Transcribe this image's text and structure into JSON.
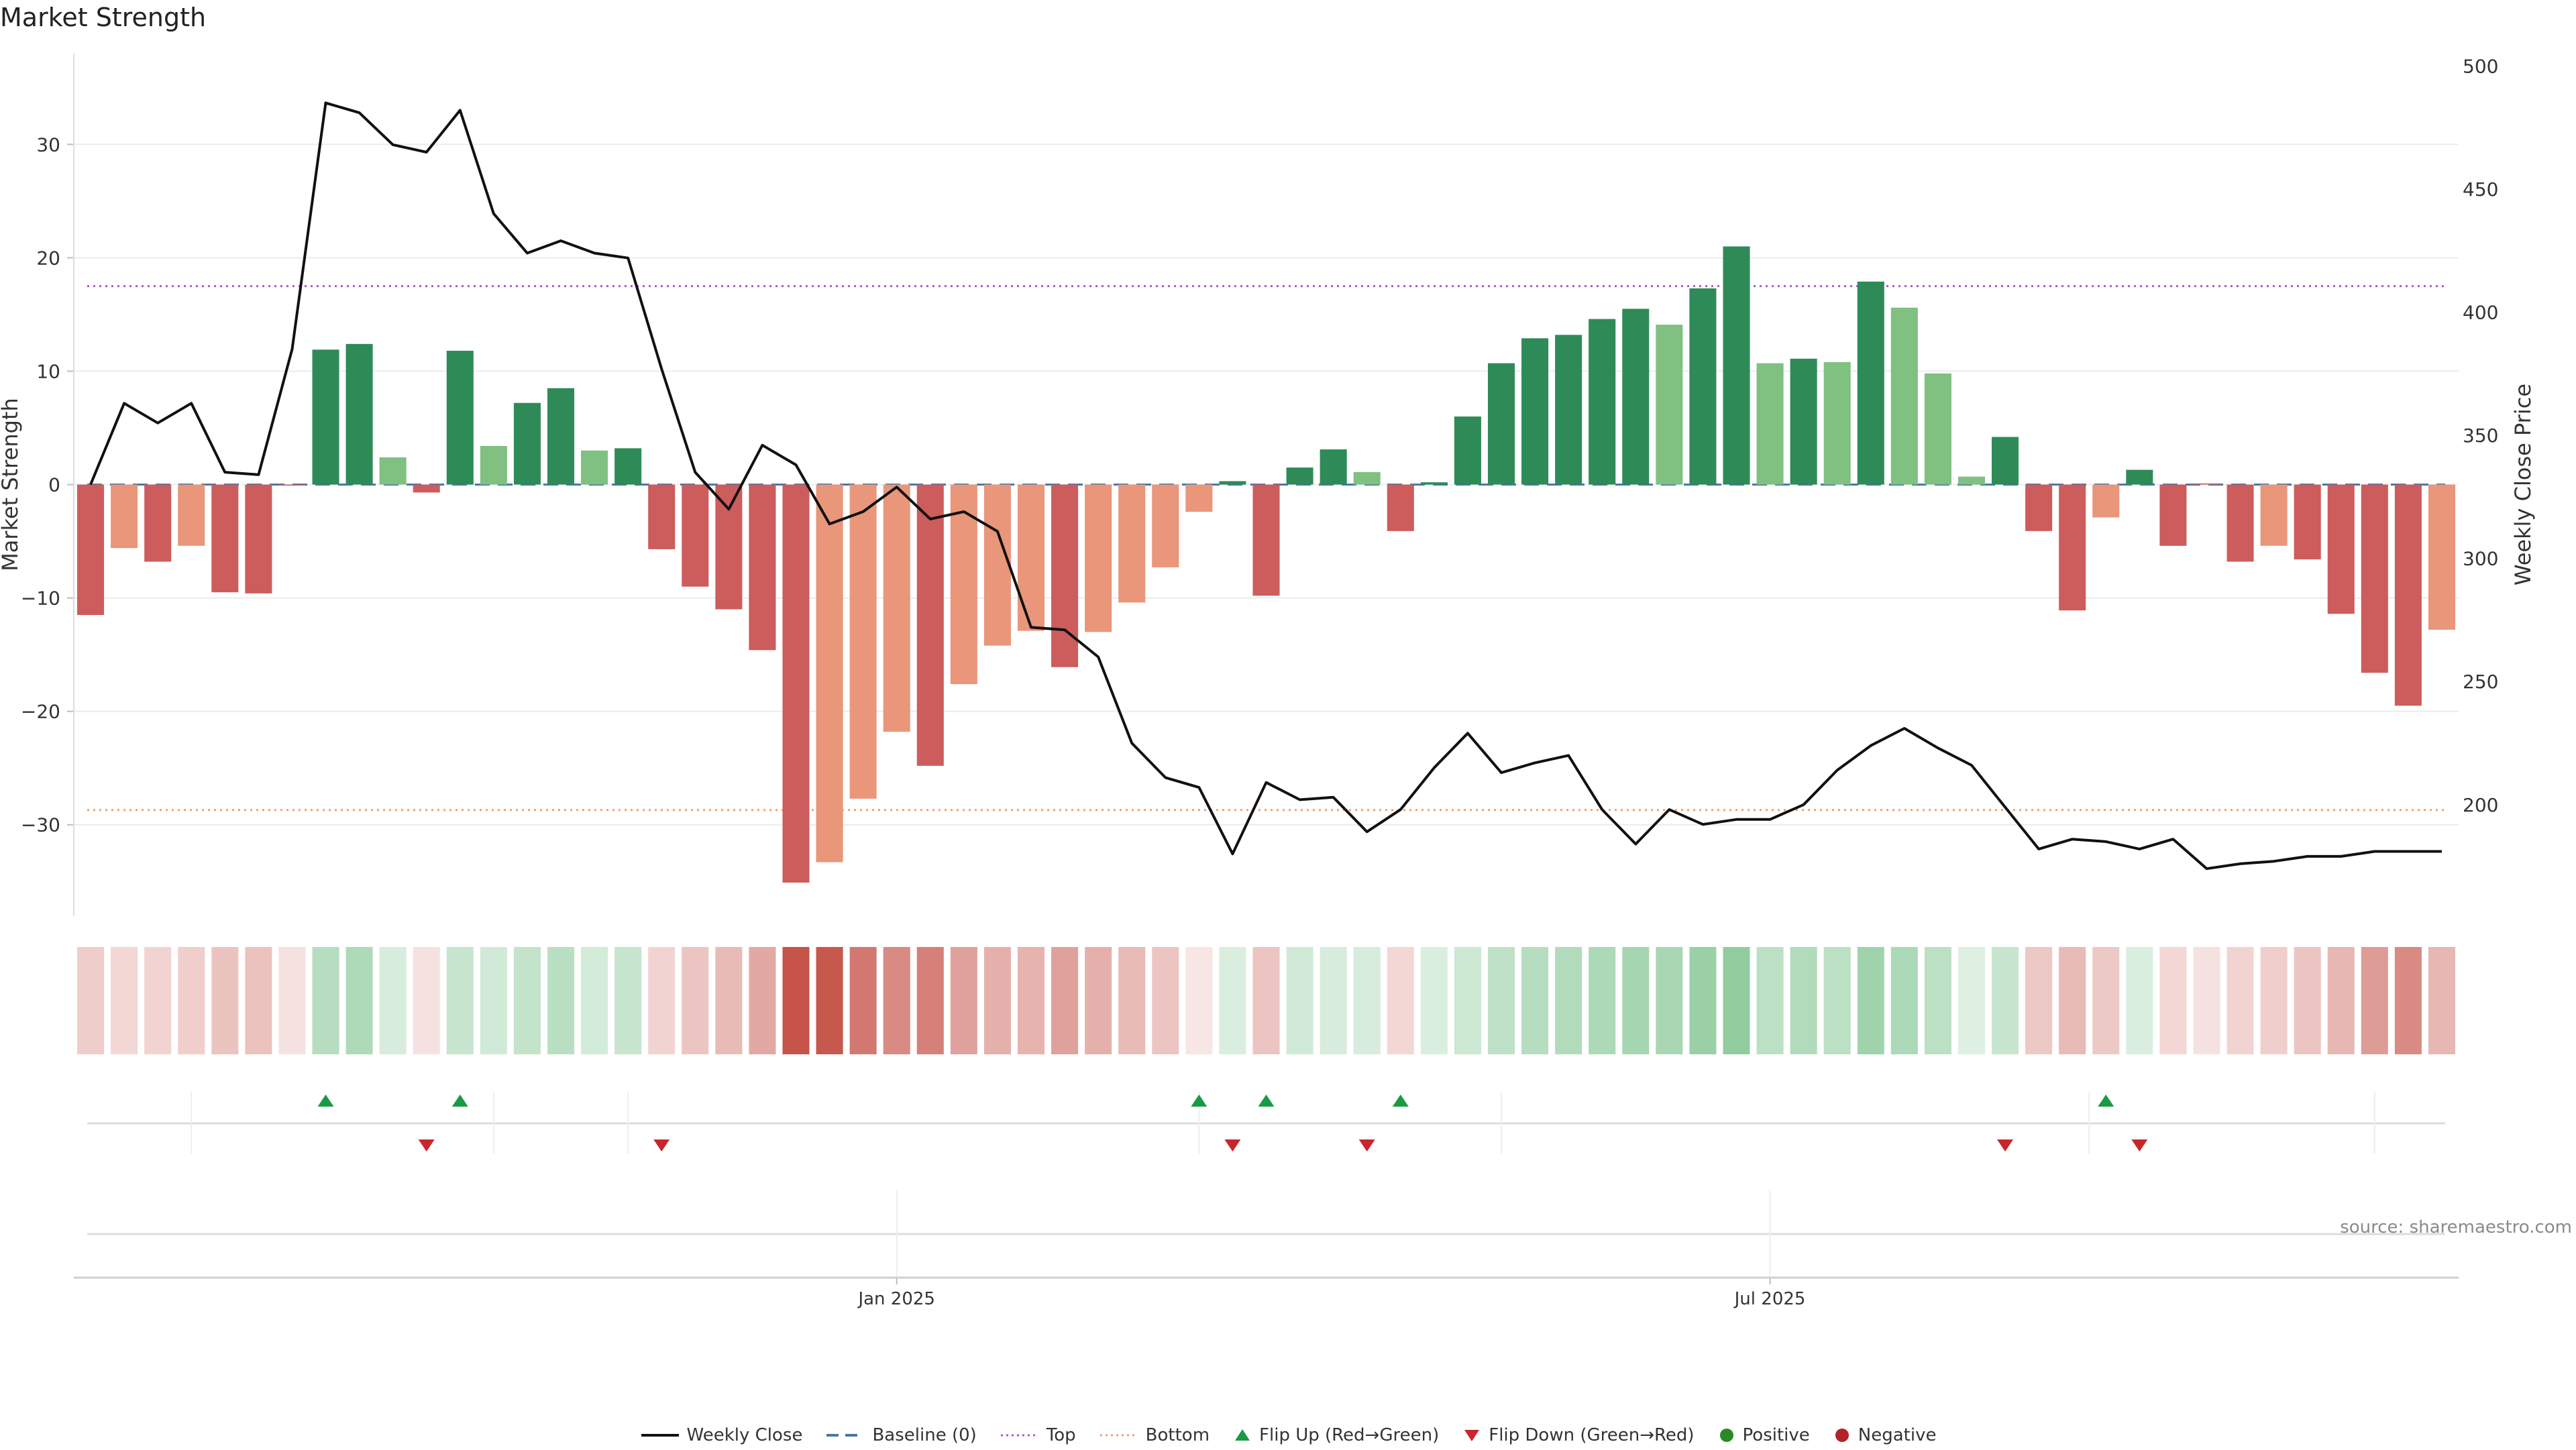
{
  "title": "Market Strength",
  "source": "source: sharemaestro.com",
  "colors": {
    "strong_pos": "#2e8b57",
    "weak_pos": "#80c080",
    "strong_neg": "#cd5c5c",
    "weak_neg": "#e9967a",
    "line": "#111111",
    "baseline": "#4a78a8",
    "top": "#a35bd0",
    "bottom": "#f0a070",
    "flip_up": "#1a9a45",
    "flip_down": "#c8262a",
    "positive": "#2a8a2a",
    "negative": "#b2222a"
  },
  "legend": [
    {
      "key": "line",
      "label": "Weekly Close",
      "symbol": "solid-line"
    },
    {
      "key": "baseline",
      "label": "Baseline (0)",
      "symbol": "dashed-line"
    },
    {
      "key": "top",
      "label": "Top",
      "symbol": "dotted-line"
    },
    {
      "key": "bottom",
      "label": "Bottom",
      "symbol": "dotted-line"
    },
    {
      "key": "flip_up",
      "label": "Flip Up (Red→Green)",
      "symbol": "triangle-up"
    },
    {
      "key": "flip_down",
      "label": "Flip Down (Green→Red)",
      "symbol": "triangle-down"
    },
    {
      "key": "positive",
      "label": "Positive",
      "symbol": "dot"
    },
    {
      "key": "negative",
      "label": "Negative",
      "symbol": "dot"
    }
  ],
  "chart_data": {
    "type": "bar",
    "ylabel": "Market Strength",
    "y2label": "Weekly Close Price",
    "ylim": [
      -38,
      38
    ],
    "y2lim": [
      155,
      505
    ],
    "yticks": [
      -30,
      -20,
      -10,
      0,
      10,
      20,
      30
    ],
    "yticks_labels": [
      "−30",
      "−20",
      "−10",
      "0",
      "10",
      "20",
      "30"
    ],
    "y2ticks": [
      200,
      250,
      300,
      350,
      400,
      450,
      500
    ],
    "y2ticks_labels": [
      "200",
      "250",
      "300",
      "350",
      "400",
      "450",
      "500"
    ],
    "x_tick_labels": [
      {
        "index": 24.5,
        "label": "Jan 2025"
      },
      {
        "index": 50.5,
        "label": "Jul 2025"
      }
    ],
    "top_level": 17.5,
    "bottom_level": -28.7,
    "baseline": 0,
    "strength": [
      -11.5,
      -5.6,
      -6.8,
      -5.4,
      -9.5,
      -9.6,
      0,
      11.9,
      12.4,
      2.4,
      -0.7,
      11.8,
      3.4,
      7.2,
      8.5,
      3.0,
      3.2,
      -5.7,
      -9.0,
      -11.0,
      -14.6,
      -35.1,
      -33.3,
      -27.7,
      -21.8,
      -24.8,
      -17.6,
      -14.2,
      -12.9,
      -16.1,
      -13.0,
      -10.4,
      -7.3,
      -2.4,
      0.3,
      -9.8,
      1.5,
      3.1,
      1.1,
      -4.1,
      0.2,
      6.0,
      10.7,
      12.9,
      13.2,
      14.6,
      15.5,
      14.1,
      17.3,
      21.0,
      10.7,
      11.1,
      10.8,
      17.9,
      15.6,
      9.8,
      0.7,
      4.2,
      -4.1,
      -11.1,
      -2.9,
      1.3,
      -5.4,
      0.1,
      -6.8,
      -5.4,
      -6.6,
      -11.4,
      -16.6,
      -19.5,
      -12.8
    ],
    "strength_class": [
      "strong_neg",
      "weak_neg",
      "strong_neg",
      "weak_neg",
      "strong_neg",
      "strong_neg",
      "strong_neg",
      "strong_pos",
      "strong_pos",
      "weak_pos",
      "strong_neg",
      "strong_pos",
      "weak_pos",
      "strong_pos",
      "strong_pos",
      "weak_pos",
      "strong_pos",
      "strong_neg",
      "strong_neg",
      "strong_neg",
      "strong_neg",
      "strong_neg",
      "weak_neg",
      "weak_neg",
      "weak_neg",
      "strong_neg",
      "weak_neg",
      "weak_neg",
      "weak_neg",
      "strong_neg",
      "weak_neg",
      "weak_neg",
      "weak_neg",
      "weak_neg",
      "strong_pos",
      "strong_neg",
      "strong_pos",
      "strong_pos",
      "weak_pos",
      "strong_neg",
      "strong_pos",
      "strong_pos",
      "strong_pos",
      "strong_pos",
      "strong_pos",
      "strong_pos",
      "strong_pos",
      "weak_pos",
      "strong_pos",
      "strong_pos",
      "weak_pos",
      "strong_pos",
      "weak_pos",
      "strong_pos",
      "weak_pos",
      "weak_pos",
      "weak_pos",
      "strong_pos",
      "strong_neg",
      "strong_neg",
      "weak_neg",
      "strong_pos",
      "strong_neg",
      "strong_neg",
      "strong_neg",
      "weak_neg",
      "strong_neg",
      "strong_neg",
      "strong_neg",
      "strong_neg",
      "weak_neg"
    ],
    "weekly_close": [
      330,
      363,
      355,
      363,
      335,
      334,
      385,
      485,
      481,
      468,
      465,
      482,
      440,
      424,
      429,
      424,
      422,
      377,
      335,
      320,
      346,
      338,
      314,
      319,
      329,
      316,
      319,
      311,
      272,
      271,
      260,
      225,
      211,
      207,
      180,
      209,
      202,
      203,
      189,
      198,
      215,
      229,
      213,
      217,
      220,
      198,
      184,
      198,
      192,
      194,
      194,
      200,
      214,
      224,
      231,
      223,
      216,
      199,
      182,
      186,
      185,
      182,
      186,
      174,
      176,
      177,
      179,
      179,
      181,
      181,
      181
    ],
    "heat_strip": [
      -0.28,
      -0.22,
      -0.24,
      -0.27,
      -0.33,
      -0.34,
      -0.16,
      0.4,
      0.44,
      0.22,
      -0.16,
      0.3,
      0.25,
      0.33,
      0.38,
      0.24,
      0.3,
      -0.24,
      -0.32,
      -0.38,
      -0.48,
      -0.95,
      -0.93,
      -0.75,
      -0.65,
      -0.7,
      -0.52,
      -0.44,
      -0.42,
      -0.52,
      -0.44,
      -0.38,
      -0.32,
      -0.14,
      0.2,
      -0.32,
      0.25,
      0.22,
      0.22,
      -0.22,
      0.2,
      0.28,
      0.35,
      0.4,
      0.42,
      0.45,
      0.48,
      0.47,
      0.55,
      0.6,
      0.37,
      0.42,
      0.37,
      0.52,
      0.45,
      0.37,
      0.18,
      0.3,
      -0.3,
      -0.38,
      -0.3,
      0.2,
      -0.22,
      -0.16,
      -0.24,
      -0.27,
      -0.32,
      -0.4,
      -0.55,
      -0.65,
      -0.4
    ],
    "flips_up": [
      7,
      11,
      33,
      35,
      39,
      60
    ],
    "flips_down": [
      10,
      17,
      34,
      38,
      57,
      61
    ]
  }
}
